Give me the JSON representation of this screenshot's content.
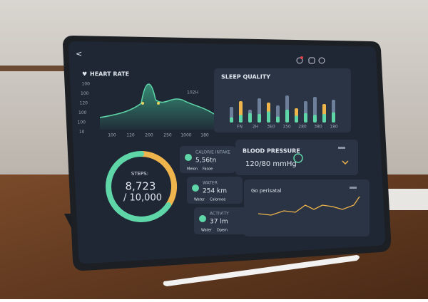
{
  "header": {
    "back": "<"
  },
  "heart_rate": {
    "title": "HEART RATE",
    "y_labels": [
      "100",
      "100",
      "120",
      "100",
      "100",
      "10"
    ],
    "x_labels": [
      "100",
      "120",
      "200",
      "250",
      "1000",
      "180"
    ],
    "annotation": "102H"
  },
  "sleep_quality": {
    "title": "SLEEP QUALITY",
    "labels": [
      "FN",
      "2H",
      "3E0",
      "150",
      "280",
      "380",
      "180"
    ]
  },
  "steps": {
    "label": "STEPS:",
    "value": "8,723",
    "goal": "/ 10,000"
  },
  "cards": [
    {
      "title": "CALORIE INTAKE",
      "value": "5,56tn",
      "sub": [
        "Meion",
        "Fasoe"
      ]
    },
    {
      "title": "WATER",
      "value": "254 km",
      "sub": [
        "Water",
        "Calornoe"
      ]
    },
    {
      "title": "ACTIVITY",
      "value": "37 lm",
      "sub": [
        "Water",
        "Dpem"
      ]
    }
  ],
  "blood_pressure": {
    "title": "BLOOD PRESSURE",
    "value": "120/80 mmHg"
  },
  "trend": {
    "title": "Go perisatal"
  }
}
